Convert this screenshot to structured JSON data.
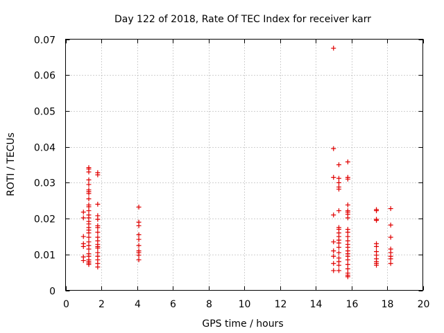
{
  "chart_data": {
    "type": "scatter",
    "title": "Day 122 of 2018, Rate Of TEC Index for receiver karr",
    "xlabel": "GPS time / hours",
    "ylabel": "ROTI / TECUs",
    "xlim": [
      0,
      20
    ],
    "ylim": [
      0,
      0.07
    ],
    "grid": true,
    "marker": "+",
    "color": "#e00000",
    "x_ticks": [
      0,
      2,
      4,
      6,
      8,
      10,
      12,
      14,
      16,
      18,
      20
    ],
    "x_tick_labels": [
      "0",
      "2",
      "4",
      "6",
      "8",
      "10",
      "12",
      "14",
      "16",
      "18",
      "20"
    ],
    "y_ticks": [
      0,
      0.01,
      0.02,
      0.03,
      0.04,
      0.05,
      0.06,
      0.07
    ],
    "y_tick_labels": [
      "0",
      "0.01",
      "0.02",
      "0.03",
      "0.04",
      "0.05",
      "0.06",
      "0.07"
    ],
    "series": [
      {
        "name": "karr ROTI",
        "points": [
          [
            1.0,
            0.0083
          ],
          [
            1.0,
            0.0093
          ],
          [
            1.0,
            0.0122
          ],
          [
            1.0,
            0.013
          ],
          [
            1.0,
            0.015
          ],
          [
            1.0,
            0.0202
          ],
          [
            1.0,
            0.0218
          ],
          [
            1.3,
            0.0072
          ],
          [
            1.3,
            0.0076
          ],
          [
            1.3,
            0.008
          ],
          [
            1.3,
            0.0085
          ],
          [
            1.3,
            0.0095
          ],
          [
            1.3,
            0.0102
          ],
          [
            1.3,
            0.0115
          ],
          [
            1.3,
            0.0125
          ],
          [
            1.3,
            0.0135
          ],
          [
            1.3,
            0.0148
          ],
          [
            1.3,
            0.016
          ],
          [
            1.3,
            0.0168
          ],
          [
            1.3,
            0.0175
          ],
          [
            1.3,
            0.0185
          ],
          [
            1.3,
            0.0192
          ],
          [
            1.3,
            0.0202
          ],
          [
            1.3,
            0.021
          ],
          [
            1.3,
            0.0222
          ],
          [
            1.3,
            0.0233
          ],
          [
            1.3,
            0.0238
          ],
          [
            1.3,
            0.0255
          ],
          [
            1.3,
            0.027
          ],
          [
            1.3,
            0.0275
          ],
          [
            1.3,
            0.028
          ],
          [
            1.3,
            0.0295
          ],
          [
            1.3,
            0.0308
          ],
          [
            1.3,
            0.033
          ],
          [
            1.3,
            0.0338
          ],
          [
            1.3,
            0.0342
          ],
          [
            1.8,
            0.0065
          ],
          [
            1.8,
            0.0075
          ],
          [
            1.8,
            0.0085
          ],
          [
            1.8,
            0.0095
          ],
          [
            1.8,
            0.0105
          ],
          [
            1.8,
            0.0118
          ],
          [
            1.8,
            0.0122
          ],
          [
            1.8,
            0.0128
          ],
          [
            1.8,
            0.0138
          ],
          [
            1.8,
            0.0148
          ],
          [
            1.8,
            0.0162
          ],
          [
            1.8,
            0.0175
          ],
          [
            1.8,
            0.018
          ],
          [
            1.8,
            0.0198
          ],
          [
            1.8,
            0.0208
          ],
          [
            1.8,
            0.024
          ],
          [
            1.8,
            0.0322
          ],
          [
            1.8,
            0.0328
          ],
          [
            4.1,
            0.0085
          ],
          [
            4.1,
            0.0098
          ],
          [
            4.1,
            0.0105
          ],
          [
            4.1,
            0.011
          ],
          [
            4.1,
            0.0125
          ],
          [
            4.1,
            0.0142
          ],
          [
            4.1,
            0.0155
          ],
          [
            4.1,
            0.018
          ],
          [
            4.1,
            0.019
          ],
          [
            4.1,
            0.0232
          ],
          [
            15.0,
            0.0055
          ],
          [
            15.0,
            0.0075
          ],
          [
            15.0,
            0.0095
          ],
          [
            15.0,
            0.011
          ],
          [
            15.0,
            0.0135
          ],
          [
            15.0,
            0.021
          ],
          [
            15.0,
            0.0315
          ],
          [
            15.0,
            0.0395
          ],
          [
            15.0,
            0.0675
          ],
          [
            15.3,
            0.0055
          ],
          [
            15.3,
            0.007
          ],
          [
            15.3,
            0.008
          ],
          [
            15.3,
            0.009
          ],
          [
            15.3,
            0.0105
          ],
          [
            15.3,
            0.012
          ],
          [
            15.3,
            0.0132
          ],
          [
            15.3,
            0.014
          ],
          [
            15.3,
            0.015
          ],
          [
            15.3,
            0.016
          ],
          [
            15.3,
            0.017
          ],
          [
            15.3,
            0.0175
          ],
          [
            15.3,
            0.0222
          ],
          [
            15.3,
            0.0282
          ],
          [
            15.3,
            0.0288
          ],
          [
            15.3,
            0.03
          ],
          [
            15.3,
            0.0312
          ],
          [
            15.3,
            0.035
          ],
          [
            15.8,
            0.0038
          ],
          [
            15.8,
            0.0042
          ],
          [
            15.8,
            0.0048
          ],
          [
            15.8,
            0.006
          ],
          [
            15.8,
            0.0072
          ],
          [
            15.8,
            0.0085
          ],
          [
            15.8,
            0.0095
          ],
          [
            15.8,
            0.0102
          ],
          [
            15.8,
            0.011
          ],
          [
            15.8,
            0.012
          ],
          [
            15.8,
            0.0128
          ],
          [
            15.8,
            0.0138
          ],
          [
            15.8,
            0.015
          ],
          [
            15.8,
            0.0162
          ],
          [
            15.8,
            0.017
          ],
          [
            15.8,
            0.0202
          ],
          [
            15.8,
            0.0212
          ],
          [
            15.8,
            0.0218
          ],
          [
            15.8,
            0.0222
          ],
          [
            15.8,
            0.0238
          ],
          [
            15.8,
            0.031
          ],
          [
            15.8,
            0.0315
          ],
          [
            15.8,
            0.0358
          ],
          [
            17.4,
            0.007
          ],
          [
            17.4,
            0.0075
          ],
          [
            17.4,
            0.008
          ],
          [
            17.4,
            0.0088
          ],
          [
            17.4,
            0.0098
          ],
          [
            17.4,
            0.0108
          ],
          [
            17.4,
            0.0122
          ],
          [
            17.4,
            0.013
          ],
          [
            17.4,
            0.0195
          ],
          [
            17.4,
            0.0198
          ],
          [
            17.4,
            0.0222
          ],
          [
            17.4,
            0.0225
          ],
          [
            18.2,
            0.0075
          ],
          [
            18.2,
            0.0088
          ],
          [
            18.2,
            0.0095
          ],
          [
            18.2,
            0.0105
          ],
          [
            18.2,
            0.0115
          ],
          [
            18.2,
            0.0148
          ],
          [
            18.2,
            0.0182
          ],
          [
            18.2,
            0.0228
          ]
        ]
      }
    ]
  }
}
